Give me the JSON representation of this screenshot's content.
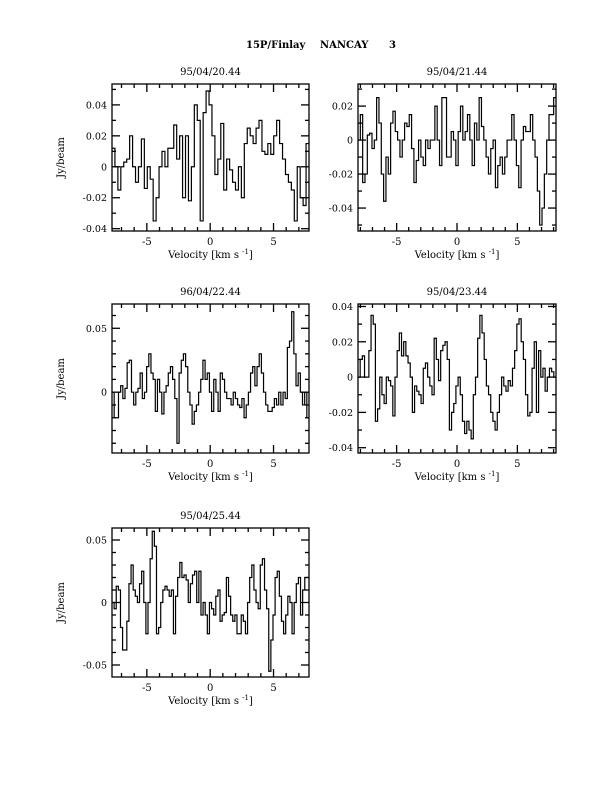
{
  "page": {
    "title_object": "15P/Finlay",
    "title_site": "NANCAY",
    "title_number": "3"
  },
  "colors": {
    "line": "#000000",
    "background": "#ffffff"
  },
  "chart_data": [
    {
      "type": "line",
      "style": "histogram",
      "title": "95/04/20.44",
      "xlabel": "Velocity [km s",
      "xlabel_sup": "-1",
      "xlabel_end": "]",
      "ylabel": "Jy/beam",
      "xlim": [
        -7.75,
        7.8
      ],
      "ylim": [
        -0.0415,
        0.0535
      ],
      "xticks": [
        -5,
        0,
        5
      ],
      "xtick_labels": [
        "-5",
        "0",
        "5"
      ],
      "yticks": [
        -0.04,
        -0.02,
        0,
        0.02,
        0.04
      ],
      "ytick_labels": [
        "-0.04",
        "-0.02",
        "0",
        "0.02",
        "0.04"
      ],
      "yminor": 0.01,
      "values": [
        0.012,
        0.0,
        -0.015,
        0.0,
        0.003,
        0.005,
        0.02,
        0.0,
        -0.01,
        0.0,
        0.018,
        -0.014,
        0.0,
        -0.008,
        -0.035,
        -0.02,
        0.0,
        0.01,
        0.0,
        0.012,
        0.012,
        0.027,
        0.005,
        0.02,
        -0.02,
        0.02,
        -0.022,
        0.0,
        0.04,
        0.03,
        -0.035,
        0.035,
        0.049,
        0.04,
        0.02,
        -0.005,
        0.005,
        0.028,
        -0.015,
        0.005,
        -0.002,
        -0.01,
        -0.015,
        0.0,
        -0.02,
        0.015,
        0.025,
        0.02,
        0.015,
        0.025,
        0.03,
        0.01,
        0.008,
        0.015,
        0.008,
        0.02,
        0.03,
        0.015,
        0.005,
        -0.005,
        -0.01,
        -0.015,
        -0.035,
        0.0,
        -0.02,
        -0.025,
        0.015
      ]
    },
    {
      "type": "line",
      "style": "histogram",
      "title": "95/04/21.44",
      "xlabel": "Velocity [km s",
      "xlabel_sup": "-1",
      "xlabel_end": "]",
      "ylabel": "",
      "xlim": [
        -8.2,
        8.2
      ],
      "ylim": [
        -0.0535,
        0.033
      ],
      "xticks": [
        -5,
        0,
        5
      ],
      "xtick_labels": [
        "-5",
        "0",
        "5"
      ],
      "yticks": [
        -0.04,
        -0.02,
        0,
        0.02
      ],
      "ytick_labels": [
        "-0.04",
        "-0.02",
        "0",
        "0.02"
      ],
      "yminor": 0.01,
      "values": [
        0.0,
        0.015,
        -0.025,
        -0.02,
        0.003,
        0.004,
        -0.005,
        0.0,
        0.025,
        0.01,
        -0.02,
        -0.036,
        -0.01,
        -0.02,
        0.01,
        0.017,
        0.005,
        0.0,
        -0.01,
        0.0,
        0.01,
        0.008,
        0.015,
        -0.005,
        -0.025,
        -0.012,
        0.0,
        -0.01,
        -0.015,
        0.0,
        -0.005,
        0.0,
        0.0,
        0.02,
        0.0,
        -0.015,
        0.025,
        0.025,
        -0.01,
        -0.01,
        0.005,
        0.0,
        -0.015,
        0.005,
        0.02,
        0.0,
        0.005,
        0.015,
        0.0,
        -0.015,
        0.01,
        0.0,
        0.025,
        0.008,
        0.0,
        -0.01,
        -0.02,
        -0.005,
        0.0,
        -0.028,
        -0.015,
        -0.01,
        -0.02,
        -0.01,
        0.0,
        0.0,
        0.015,
        0.0,
        -0.015,
        -0.028,
        0.0,
        0.008,
        0.005,
        0.005,
        0.015,
        0.0,
        -0.01,
        -0.03,
        -0.05,
        -0.04,
        -0.02,
        0.0,
        0.015,
        0.015,
        0.025
      ]
    },
    {
      "type": "line",
      "style": "histogram",
      "title": "96/04/22.44",
      "xlabel": "Velocity [km s",
      "xlabel_sup": "-1",
      "xlabel_end": "]",
      "ylabel": "Jy/beam",
      "xlim": [
        -7.75,
        7.8
      ],
      "ylim": [
        -0.0476,
        0.069
      ],
      "xticks": [
        -5,
        0,
        5
      ],
      "xtick_labels": [
        "-5",
        "0",
        "5"
      ],
      "yticks": [
        0,
        0.05
      ],
      "ytick_labels": [
        "0",
        "0.05"
      ],
      "yminor": 0.01,
      "values": [
        0.0,
        -0.02,
        -0.02,
        0.0,
        0.005,
        -0.005,
        0.003,
        0.023,
        0.025,
        0.0,
        -0.01,
        0.0,
        0.003,
        0.015,
        -0.005,
        0.0,
        0.02,
        0.03,
        0.015,
        0.01,
        -0.015,
        0.01,
        0.0,
        -0.017,
        0.0,
        0.005,
        0.015,
        0.02,
        0.01,
        -0.005,
        -0.04,
        0.015,
        0.025,
        0.03,
        0.02,
        0.0,
        -0.01,
        -0.025,
        -0.015,
        -0.01,
        0.0,
        0.01,
        0.025,
        0.01,
        0.015,
        0.0,
        -0.015,
        0.01,
        0.0,
        -0.015,
        0.015,
        0.01,
        0.0,
        -0.005,
        -0.005,
        -0.01,
        0.0,
        -0.005,
        -0.01,
        -0.012,
        -0.005,
        -0.02,
        -0.01,
        0.0,
        0.015,
        0.02,
        0.005,
        0.02,
        0.03,
        0.015,
        0.0,
        -0.01,
        -0.015,
        -0.015,
        -0.012,
        -0.005,
        -0.01,
        0.0,
        -0.01,
        0.0,
        -0.005,
        0.035,
        0.04,
        0.063,
        0.03,
        0.005,
        0.015,
        0.0,
        -0.01,
        0.0,
        -0.02
      ]
    },
    {
      "type": "line",
      "style": "histogram",
      "title": "95/04/23.44",
      "xlabel": "Velocity [km s",
      "xlabel_sup": "-1",
      "xlabel_end": "]",
      "ylabel": "",
      "xlim": [
        -8.2,
        8.2
      ],
      "ylim": [
        -0.043,
        0.0414
      ],
      "xticks": [
        -5,
        0,
        5
      ],
      "xtick_labels": [
        "-5",
        "0",
        "5"
      ],
      "yticks": [
        -0.04,
        -0.02,
        0,
        0.02,
        0.04
      ],
      "ytick_labels": [
        "-0.04",
        "-0.02",
        "0",
        "0.02",
        "0.04"
      ],
      "yminor": 0.01,
      "values": [
        0.0,
        0.01,
        0.012,
        0.0,
        0.0,
        0.015,
        0.035,
        0.03,
        -0.025,
        -0.018,
        0.0,
        -0.01,
        -0.015,
        0.0,
        -0.002,
        -0.005,
        -0.022,
        0.0,
        0.015,
        0.025,
        0.012,
        0.02,
        0.012,
        0.008,
        0.0,
        -0.02,
        -0.005,
        -0.008,
        -0.01,
        -0.015,
        0.005,
        0.008,
        0.0,
        -0.005,
        -0.01,
        0.022,
        0.01,
        -0.002,
        0.015,
        0.018,
        0.02,
        0.01,
        -0.03,
        -0.02,
        -0.015,
        -0.005,
        0.0,
        -0.01,
        -0.025,
        -0.032,
        -0.025,
        -0.03,
        -0.035,
        -0.01,
        0.0,
        0.022,
        0.035,
        0.025,
        0.01,
        -0.005,
        -0.01,
        -0.02,
        -0.025,
        -0.03,
        -0.02,
        -0.01,
        0.0,
        -0.005,
        -0.008,
        -0.002,
        -0.005,
        0.005,
        0.015,
        0.03,
        0.033,
        0.02,
        0.01,
        -0.01,
        -0.022,
        -0.02,
        0.005,
        0.02,
        -0.02,
        0.015,
        0.0,
        0.005,
        -0.008,
        0.0,
        0.005,
        0.003,
        0.0
      ]
    },
    {
      "type": "line",
      "style": "histogram",
      "title": "95/04/25.44",
      "xlabel": "Velocity [km s",
      "xlabel_sup": "-1",
      "xlabel_end": "]",
      "ylabel": "Jy/beam",
      "xlim": [
        -7.75,
        7.8
      ],
      "ylim": [
        -0.0596,
        0.0596
      ],
      "xticks": [
        -5,
        0,
        5
      ],
      "xtick_labels": [
        "-5",
        "0",
        "5"
      ],
      "yticks": [
        -0.05,
        0,
        0.05
      ],
      "ytick_labels": [
        "-0.05",
        "0",
        "0.05"
      ],
      "yminor": 0.01,
      "values": [
        0.0,
        -0.005,
        0.013,
        0.01,
        -0.02,
        -0.038,
        -0.038,
        -0.015,
        0.015,
        0.03,
        0.01,
        0.005,
        0.0,
        0.015,
        0.025,
        0.0,
        -0.025,
        0.0,
        0.035,
        0.057,
        0.045,
        -0.025,
        -0.02,
        0.0,
        0.01,
        0.013,
        0.01,
        0.005,
        0.01,
        -0.025,
        0.005,
        0.02,
        0.032,
        0.02,
        0.022,
        0.018,
        0.0,
        0.015,
        0.022,
        0.025,
        0.0,
        0.025,
        -0.01,
        0.0,
        -0.01,
        -0.025,
        0.0,
        -0.005,
        -0.01,
        0.005,
        0.01,
        -0.015,
        -0.01,
        -0.008,
        0.02,
        0.005,
        -0.01,
        -0.015,
        -0.01,
        -0.025,
        -0.025,
        -0.01,
        -0.015,
        -0.025,
        0.0,
        0.02,
        0.03,
        0.01,
        0.0,
        -0.005,
        0.03,
        0.035,
        0.01,
        -0.005,
        -0.055,
        -0.03,
        -0.01,
        0.02,
        0.025,
        0.005,
        -0.015,
        -0.025,
        -0.01,
        0.005,
        0.0,
        -0.025,
        0.0,
        0.015,
        0.02,
        -0.01,
        0.01,
        0.02,
        0.02
      ]
    }
  ]
}
